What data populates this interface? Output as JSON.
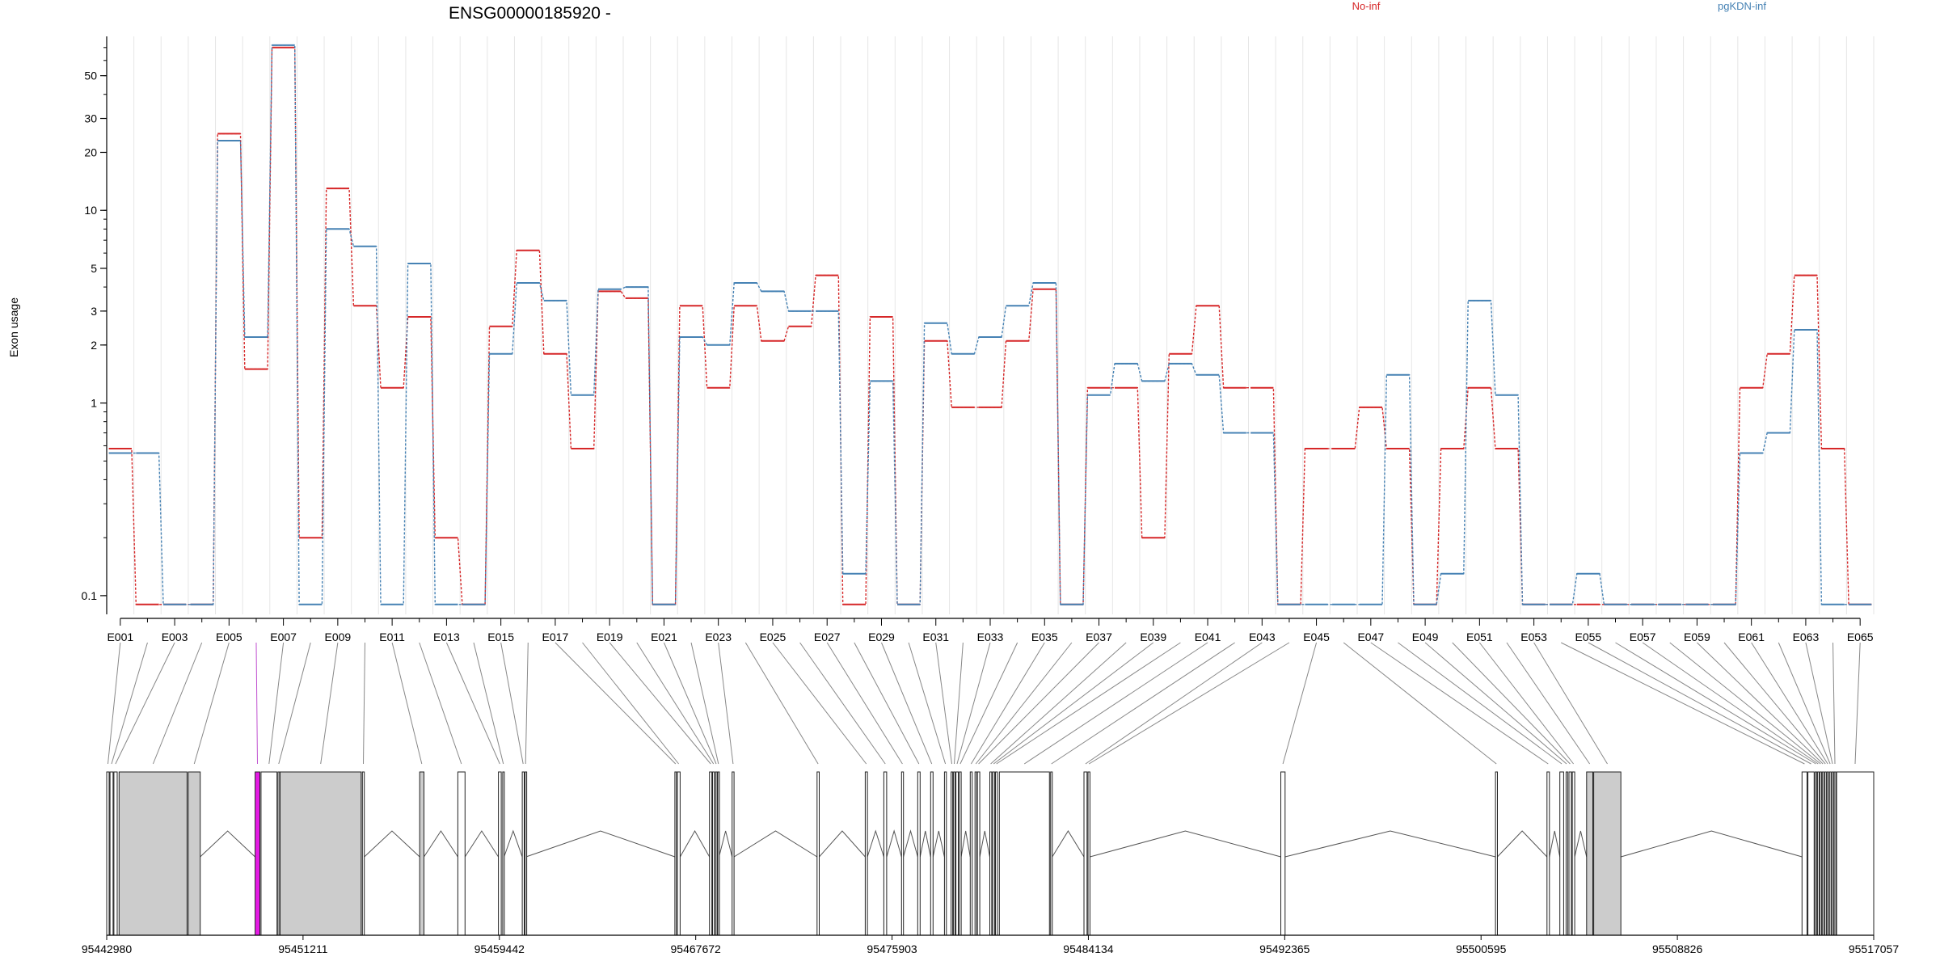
{
  "title": "ENSG00000185920 -",
  "ylabel": "Exon usage",
  "chart_data": {
    "type": "line",
    "title": "ENSG00000185920 -",
    "ylabel": "Exon usage",
    "yscale": "log",
    "ylim": [
      0.08,
      80
    ],
    "yticks": [
      0.1,
      1,
      2,
      3,
      5,
      10,
      20,
      30,
      50
    ],
    "legend_placement": "top",
    "grid": "vertical",
    "exons": [
      "E001",
      "E002",
      "E003",
      "E004",
      "E005",
      "E006",
      "E007",
      "E008",
      "E009",
      "E010",
      "E011",
      "E012",
      "E013",
      "E014",
      "E015",
      "E016",
      "E017",
      "E018",
      "E019",
      "E020",
      "E021",
      "E022",
      "E023",
      "E024",
      "E025",
      "E026",
      "E027",
      "E028",
      "E029",
      "E030",
      "E031",
      "E032",
      "E033",
      "E034",
      "E035",
      "E036",
      "E037",
      "E038",
      "E039",
      "E040",
      "E041",
      "E042",
      "E043",
      "E044",
      "E045",
      "E046",
      "E047",
      "E048",
      "E049",
      "E050",
      "E051",
      "E052",
      "E053",
      "E054",
      "E055",
      "E056",
      "E057",
      "E058",
      "E059",
      "E060",
      "E061",
      "E062",
      "E063",
      "E064",
      "E065"
    ],
    "xtick_labels": [
      "E001",
      "E003",
      "E005",
      "E007",
      "E009",
      "E011",
      "E013",
      "E015",
      "E017",
      "E019",
      "E021",
      "E023",
      "E025",
      "E027",
      "E029",
      "E031",
      "E033",
      "E035",
      "E037",
      "E039",
      "E041",
      "E043",
      "E045",
      "E047",
      "E049",
      "E051",
      "E053",
      "E055",
      "E057",
      "E059",
      "E061",
      "E063",
      "E065"
    ],
    "series": [
      {
        "name": "No-inf",
        "color": "#d62728",
        "values": [
          0.58,
          0.09,
          0.09,
          0.09,
          25,
          1.5,
          70,
          0.2,
          13,
          3.2,
          1.2,
          2.8,
          0.2,
          0.09,
          2.5,
          6.2,
          1.8,
          0.58,
          3.8,
          3.5,
          0.09,
          3.2,
          1.2,
          3.2,
          2.1,
          2.5,
          4.6,
          0.09,
          2.8,
          0.09,
          2.1,
          0.95,
          0.95,
          2.1,
          3.9,
          0.09,
          1.2,
          1.2,
          0.2,
          1.8,
          3.2,
          1.2,
          1.2,
          0.09,
          0.58,
          0.58,
          0.95,
          0.58,
          0.09,
          0.58,
          1.2,
          0.58,
          0.09,
          0.09,
          0.09,
          0.09,
          0.09,
          0.09,
          0.09,
          0.09,
          1.2,
          1.8,
          4.6,
          0.58,
          0.09
        ]
      },
      {
        "name": "pgKDN-inf",
        "color": "#4682b4",
        "values": [
          0.55,
          0.55,
          0.09,
          0.09,
          23,
          2.2,
          72,
          0.09,
          8,
          6.5,
          0.09,
          5.3,
          0.09,
          0.09,
          1.8,
          4.2,
          3.4,
          1.1,
          3.9,
          4.0,
          0.09,
          2.2,
          2.0,
          4.2,
          3.8,
          3.0,
          3.0,
          0.13,
          1.3,
          0.09,
          2.6,
          1.8,
          2.2,
          3.2,
          4.2,
          0.09,
          1.1,
          1.6,
          1.3,
          1.6,
          1.4,
          0.7,
          0.7,
          0.09,
          0.09,
          0.09,
          0.09,
          1.4,
          0.09,
          0.13,
          3.4,
          1.1,
          0.09,
          0.09,
          0.13,
          0.09,
          0.09,
          0.09,
          0.09,
          0.09,
          0.55,
          0.7,
          2.4,
          0.09,
          0.09
        ]
      }
    ],
    "genomic_ticks": [
      "95442980",
      "95451211",
      "95459442",
      "95467672",
      "95475903",
      "95484134",
      "95492365",
      "95500595",
      "95508826",
      "95517057"
    ],
    "gene_start": 95442980,
    "gene_end": 95517057,
    "exon_coords": [
      [
        95442980,
        95443080
      ],
      [
        95443120,
        95443250
      ],
      [
        95443280,
        95443420
      ],
      [
        95443500,
        95446350
      ],
      [
        95446400,
        95446900
      ],
      [
        95449200,
        95449400
      ],
      [
        95449450,
        95450120
      ],
      [
        95450160,
        95450220
      ],
      [
        95450250,
        95453650
      ],
      [
        95453700,
        95453780
      ],
      [
        95456100,
        95456280
      ],
      [
        95457700,
        95458000
      ],
      [
        95459400,
        95459520
      ],
      [
        95459580,
        95459640
      ],
      [
        95460400,
        95460480
      ],
      [
        95460520,
        95460560
      ],
      [
        95466800,
        95466860
      ],
      [
        95466900,
        95467020
      ],
      [
        95468250,
        95468350
      ],
      [
        95468380,
        95468460
      ],
      [
        95468500,
        95468560
      ],
      [
        95468600,
        95468650
      ],
      [
        95469200,
        95469280
      ],
      [
        95472760,
        95472850
      ],
      [
        95474780,
        95474870
      ],
      [
        95475560,
        95475680
      ],
      [
        95476300,
        95476380
      ],
      [
        95476980,
        95477080
      ],
      [
        95477520,
        95477620
      ],
      [
        95478100,
        95478180
      ],
      [
        95478380,
        95478440
      ],
      [
        95478480,
        95478540
      ],
      [
        95478580,
        95478680
      ],
      [
        95478720,
        95478800
      ],
      [
        95479180,
        95479260
      ],
      [
        95479380,
        95479450
      ],
      [
        95479480,
        95479580
      ],
      [
        95480000,
        95480080
      ],
      [
        95480120,
        95480200
      ],
      [
        95480240,
        95480320
      ],
      [
        95480400,
        95482500
      ],
      [
        95482550,
        95482620
      ],
      [
        95483950,
        95484080
      ],
      [
        95484120,
        95484200
      ],
      [
        95492200,
        95492380
      ],
      [
        95501200,
        95501280
      ],
      [
        95503360,
        95503460
      ],
      [
        95503900,
        95504060
      ],
      [
        95504160,
        95504200
      ],
      [
        95504280,
        95504380
      ],
      [
        95504420,
        95504520
      ],
      [
        95505020,
        95505280
      ],
      [
        95505320,
        95506460
      ],
      [
        95514050,
        95514260
      ],
      [
        95514300,
        95514560
      ],
      [
        95514600,
        95514660
      ],
      [
        95514700,
        95514760
      ],
      [
        95514800,
        95514860
      ],
      [
        95514900,
        95514960
      ],
      [
        95515000,
        95515060
      ],
      [
        95515100,
        95515160
      ],
      [
        95515200,
        95515260
      ],
      [
        95515300,
        95515360
      ],
      [
        95515400,
        95515460
      ],
      [
        95515500,
        95517057
      ]
    ],
    "highlighted_exon_index": 5,
    "highlight_color": "#e41ae4",
    "shaded_exon_indices": [
      3,
      4,
      8,
      10,
      51,
      52
    ]
  }
}
